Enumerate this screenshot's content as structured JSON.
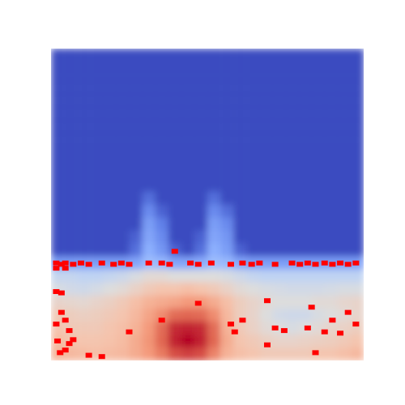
{
  "chart_data": {
    "type": "heatmap",
    "tick_labels": false,
    "color": "#ff0000",
    "xlim": [
      0,
      24
    ],
    "ylim": [
      0,
      24
    ],
    "zlim": [
      0,
      1
    ],
    "values": [
      [
        0,
        0,
        0,
        0,
        0,
        0,
        0,
        0,
        0,
        0,
        0,
        0,
        0,
        0,
        0,
        0,
        0,
        0,
        0,
        0,
        0,
        0,
        0,
        0
      ],
      [
        0,
        0,
        0,
        0,
        0,
        0,
        0,
        0,
        0,
        0,
        0,
        0,
        0,
        0,
        0,
        0,
        0,
        0,
        0,
        0,
        0,
        0,
        0,
        0
      ],
      [
        0,
        0,
        0,
        0,
        0,
        0,
        0,
        0,
        0,
        0,
        0,
        0,
        0,
        0,
        0,
        0,
        0,
        0,
        0,
        0,
        0,
        0,
        0,
        0
      ],
      [
        0,
        0,
        0,
        0,
        0,
        0,
        0,
        0,
        0,
        0,
        0,
        0,
        0,
        0,
        0,
        0,
        0,
        0,
        0,
        0,
        0,
        0,
        0,
        0
      ],
      [
        0,
        0,
        0,
        0,
        0,
        0,
        0,
        0,
        0,
        0,
        0,
        0,
        0,
        0,
        0,
        0,
        0,
        0,
        0,
        0,
        0,
        0,
        0,
        0
      ],
      [
        0,
        0,
        0,
        0,
        0,
        0,
        0,
        0,
        0,
        0,
        0,
        0,
        0,
        0,
        0,
        0,
        0,
        0,
        0,
        0,
        0,
        0,
        0,
        0
      ],
      [
        0,
        0,
        0,
        0,
        0,
        0,
        0,
        0,
        0,
        0,
        0,
        0,
        0,
        0,
        0,
        0,
        0,
        0,
        0,
        0,
        0,
        0,
        0,
        0
      ],
      [
        0,
        0,
        0,
        0,
        0,
        0,
        0,
        0,
        0,
        0,
        0,
        0,
        0,
        0,
        0,
        0,
        0,
        0,
        0,
        0,
        0,
        0,
        0,
        0
      ],
      [
        0,
        0,
        0,
        0,
        0,
        0,
        0,
        0,
        0,
        0,
        0,
        0,
        0,
        0,
        0,
        0,
        0,
        0,
        0,
        0,
        0,
        0,
        0,
        0
      ],
      [
        0,
        0,
        0,
        0,
        0,
        0,
        0,
        0,
        0,
        0,
        0,
        0,
        0,
        0,
        0,
        0,
        0,
        0,
        0,
        0,
        0,
        0,
        0,
        0
      ],
      [
        0,
        0,
        0,
        0,
        0,
        0,
        0,
        0,
        0,
        0,
        0,
        0,
        0,
        0,
        0,
        0,
        0,
        0,
        0,
        0,
        0,
        0,
        0,
        0
      ],
      [
        0,
        0,
        0,
        0,
        0,
        0,
        0,
        0.08,
        0,
        0,
        0,
        0,
        0.08,
        0,
        0,
        0,
        0,
        0,
        0,
        0,
        0,
        0,
        0,
        0
      ],
      [
        0,
        0,
        0,
        0,
        0,
        0,
        0,
        0.15,
        0.05,
        0,
        0,
        0,
        0.15,
        0.08,
        0,
        0,
        0,
        0,
        0,
        0,
        0,
        0,
        0,
        0
      ],
      [
        0,
        0,
        0,
        0,
        0,
        0,
        0,
        0.2,
        0.12,
        0,
        0,
        0,
        0.2,
        0.15,
        0,
        0,
        0,
        0,
        0,
        0,
        0,
        0,
        0,
        0
      ],
      [
        0,
        0,
        0,
        0,
        0,
        0,
        0.05,
        0.22,
        0.15,
        0,
        0,
        0.05,
        0.22,
        0.18,
        0,
        0,
        0,
        0,
        0,
        0,
        0,
        0,
        0,
        0
      ],
      [
        0,
        0,
        0,
        0,
        0,
        0,
        0.08,
        0.25,
        0.18,
        0.05,
        0,
        0.08,
        0.25,
        0.2,
        0.05,
        0,
        0,
        0,
        0,
        0,
        0,
        0,
        0,
        0
      ],
      [
        0.2,
        0.2,
        0.2,
        0.2,
        0.2,
        0.2,
        0.22,
        0.3,
        0.28,
        0.22,
        0.22,
        0.24,
        0.3,
        0.28,
        0.22,
        0.2,
        0.2,
        0.2,
        0.2,
        0.2,
        0.2,
        0.2,
        0.2,
        0.2
      ],
      [
        0.42,
        0.42,
        0.4,
        0.4,
        0.42,
        0.44,
        0.48,
        0.52,
        0.52,
        0.5,
        0.5,
        0.5,
        0.5,
        0.48,
        0.45,
        0.42,
        0.4,
        0.4,
        0.4,
        0.4,
        0.4,
        0.4,
        0.4,
        0.4
      ],
      [
        0.48,
        0.46,
        0.45,
        0.47,
        0.5,
        0.52,
        0.56,
        0.6,
        0.62,
        0.62,
        0.64,
        0.62,
        0.6,
        0.56,
        0.52,
        0.5,
        0.48,
        0.47,
        0.46,
        0.46,
        0.46,
        0.47,
        0.48,
        0.48
      ],
      [
        0.55,
        0.54,
        0.53,
        0.55,
        0.57,
        0.6,
        0.64,
        0.68,
        0.7,
        0.72,
        0.75,
        0.75,
        0.7,
        0.64,
        0.58,
        0.55,
        0.52,
        0.5,
        0.5,
        0.5,
        0.52,
        0.52,
        0.54,
        0.55
      ],
      [
        0.6,
        0.58,
        0.57,
        0.58,
        0.6,
        0.62,
        0.66,
        0.72,
        0.78,
        0.85,
        0.86,
        0.85,
        0.78,
        0.66,
        0.58,
        0.55,
        0.5,
        0.46,
        0.45,
        0.45,
        0.48,
        0.5,
        0.52,
        0.55
      ],
      [
        0.62,
        0.6,
        0.6,
        0.6,
        0.62,
        0.64,
        0.68,
        0.75,
        0.85,
        0.95,
        0.96,
        0.95,
        0.85,
        0.68,
        0.6,
        0.56,
        0.52,
        0.5,
        0.48,
        0.5,
        0.52,
        0.55,
        0.56,
        0.58
      ],
      [
        0.65,
        0.63,
        0.62,
        0.62,
        0.63,
        0.65,
        0.7,
        0.76,
        0.86,
        0.96,
        1.0,
        0.96,
        0.86,
        0.7,
        0.62,
        0.6,
        0.57,
        0.55,
        0.55,
        0.56,
        0.57,
        0.58,
        0.6,
        0.62
      ],
      [
        0.68,
        0.66,
        0.65,
        0.64,
        0.65,
        0.66,
        0.7,
        0.75,
        0.82,
        0.9,
        0.92,
        0.9,
        0.8,
        0.68,
        0.64,
        0.62,
        0.6,
        0.6,
        0.6,
        0.6,
        0.62,
        0.62,
        0.64,
        0.66
      ]
    ],
    "points": {
      "x": [
        0.4,
        0.8,
        1.1,
        1.7,
        2.3,
        2.9,
        3.9,
        4.8,
        5.4,
        6.0,
        7.5,
        8.5,
        9.1,
        9.5,
        10.7,
        11.3,
        12.3,
        13.8,
        14.7,
        15.4,
        16.0,
        17.2,
        18.5,
        19.1,
        19.7,
        20.3,
        21.0,
        21.6,
        22.2,
        22.8,
        23.4,
        0.4,
        1.1,
        0.4,
        0.8,
        0.8,
        1.1,
        0.4,
        1.4,
        1.7,
        1.4,
        1.1,
        2.9,
        3.9,
        0.5,
        0.7,
        6.0,
        8.5,
        11.3,
        16.6,
        20.0,
        22.8,
        21.6,
        23.4,
        13.8,
        14.1,
        14.7,
        17.2,
        17.9,
        19.7,
        21.0,
        22.2,
        20.3,
        16.6
      ],
      "y": [
        7.5,
        7.4,
        7.5,
        7.4,
        7.5,
        7.4,
        7.5,
        7.4,
        7.5,
        7.4,
        7.5,
        7.5,
        7.4,
        8.4,
        7.5,
        7.4,
        7.5,
        7.4,
        7.5,
        7.4,
        7.5,
        7.4,
        7.5,
        7.4,
        7.5,
        7.4,
        7.5,
        7.4,
        7.5,
        7.4,
        7.5,
        7.1,
        7.1,
        5.3,
        5.2,
        3.7,
        3.1,
        2.8,
        2.3,
        1.6,
        1.3,
        0.8,
        0.4,
        0.3,
        1.5,
        0.6,
        2.2,
        3.1,
        4.4,
        4.6,
        4.1,
        3.7,
        3.1,
        2.8,
        2.8,
        2.2,
        3.1,
        2.5,
        2.3,
        2.5,
        2.2,
        2.1,
        0.6,
        1.2
      ]
    }
  }
}
